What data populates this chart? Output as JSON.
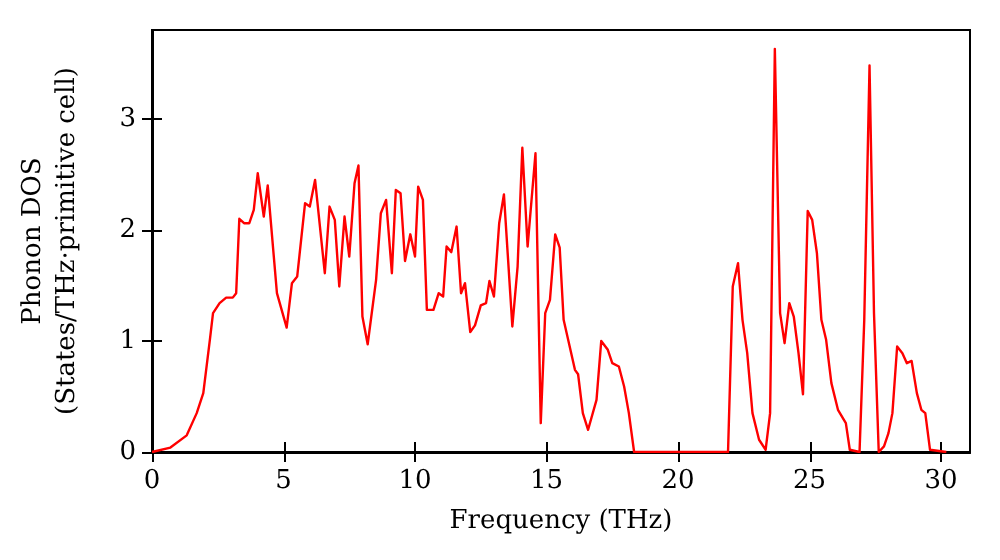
{
  "chart_data": {
    "type": "line",
    "xlabel": "Frequency (THz)",
    "ylabel": "Phonon DOS\n(States/THz·primitive cell)",
    "xlim": [
      0,
      31.1
    ],
    "ylim": [
      0,
      3.8
    ],
    "xticks": [
      0,
      5,
      10,
      15,
      20,
      25,
      30
    ],
    "yticks": [
      0,
      1,
      2,
      3
    ],
    "line_style": "solid",
    "series": [
      {
        "color": "#ff0000",
        "x": [
          0,
          0.7,
          1.32,
          1.7,
          1.95,
          2.2,
          2.32,
          2.57,
          2.82,
          3.07,
          3.2,
          3.32,
          3.5,
          3.7,
          3.87,
          4.02,
          4.25,
          4.4,
          4.75,
          5.12,
          5.32,
          5.52,
          5.82,
          6.0,
          6.2,
          6.57,
          6.75,
          6.95,
          7.12,
          7.32,
          7.5,
          7.7,
          7.85,
          8.0,
          8.2,
          8.52,
          8.7,
          8.9,
          9.12,
          9.27,
          9.45,
          9.62,
          9.82,
          10.0,
          10.12,
          10.3,
          10.45,
          10.7,
          10.9,
          11.07,
          11.2,
          11.38,
          11.58,
          11.75,
          11.9,
          12.1,
          12.28,
          12.5,
          12.7,
          12.83,
          13.0,
          13.2,
          13.38,
          13.7,
          13.9,
          14.08,
          14.28,
          14.58,
          14.78,
          14.95,
          15.13,
          15.33,
          15.5,
          15.65,
          16.08,
          16.2,
          16.38,
          16.58,
          16.9,
          17.08,
          17.33,
          17.5,
          17.75,
          17.95,
          18.13,
          18.33,
          21.9,
          22.08,
          22.28,
          22.45,
          22.63,
          22.83,
          23.08,
          23.33,
          23.5,
          23.68,
          23.88,
          24.05,
          24.23,
          24.4,
          24.58,
          24.75,
          24.93,
          25.1,
          25.28,
          25.45,
          25.63,
          25.83,
          26.08,
          26.38,
          26.53,
          26.9,
          27.08,
          27.28,
          27.45,
          27.63,
          27.83,
          28.0,
          28.15,
          28.33,
          28.53,
          28.7,
          28.88,
          29.08,
          29.25,
          29.4,
          29.58,
          30.2
        ],
        "values": [
          0,
          0.04,
          0.15,
          0.35,
          0.53,
          1.01,
          1.25,
          1.34,
          1.39,
          1.39,
          1.43,
          2.1,
          2.06,
          2.06,
          2.18,
          2.51,
          2.12,
          2.4,
          1.43,
          1.12,
          1.52,
          1.58,
          2.24,
          2.21,
          2.45,
          1.61,
          2.21,
          2.09,
          1.49,
          2.12,
          1.76,
          2.42,
          2.58,
          1.22,
          0.97,
          1.55,
          2.15,
          2.27,
          1.61,
          2.36,
          2.33,
          1.72,
          1.96,
          1.76,
          2.39,
          2.27,
          1.28,
          1.28,
          1.43,
          1.4,
          1.85,
          1.8,
          2.03,
          1.43,
          1.52,
          1.08,
          1.14,
          1.32,
          1.34,
          1.54,
          1.4,
          2.06,
          2.32,
          1.13,
          1.67,
          2.74,
          1.85,
          2.69,
          0.26,
          1.25,
          1.37,
          1.96,
          1.84,
          1.19,
          0.74,
          0.7,
          0.35,
          0.2,
          0.47,
          1.0,
          0.92,
          0.8,
          0.77,
          0.59,
          0.35,
          0,
          0,
          1.49,
          1.7,
          1.19,
          0.89,
          0.35,
          0.11,
          0.02,
          0.35,
          3.63,
          1.25,
          0.98,
          1.34,
          1.22,
          0.89,
          0.52,
          2.17,
          2.09,
          1.79,
          1.19,
          1.01,
          0.62,
          0.38,
          0.26,
          0.02,
          0,
          1.19,
          3.48,
          1.25,
          0,
          0.05,
          0.17,
          0.35,
          0.95,
          0.89,
          0.8,
          0.82,
          0.53,
          0.38,
          0.35,
          0.02,
          0
        ]
      }
    ]
  }
}
